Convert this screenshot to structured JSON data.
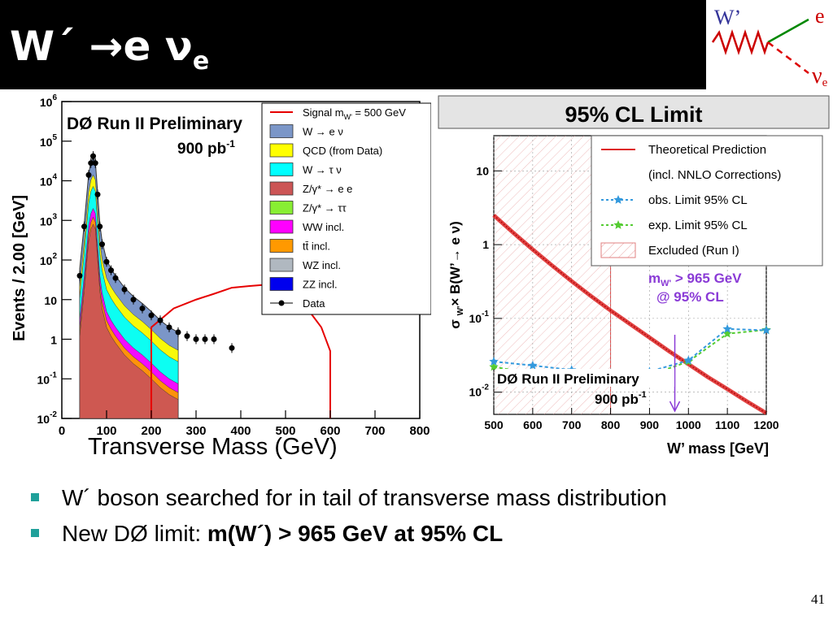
{
  "slide": {
    "title_main": "W´ →e ν",
    "title_sub": "e",
    "feynman": {
      "w_label": "W’",
      "e_label": "e",
      "nu_label": "ν",
      "nu_sub": "e"
    },
    "bullets": [
      {
        "text": "W´ boson searched for in tail of transverse mass distribution",
        "bold": ""
      },
      {
        "text": "New DØ limit: ",
        "bold": "m(W´) > 965 GeV at 95% CL"
      }
    ],
    "page_number": "41",
    "left_xlabel": "Transverse Mass (GeV)"
  },
  "chart_data": [
    {
      "type": "bar",
      "subtype": "stacked-histogram-log",
      "ylabel": "Events / 2.00 [GeV]",
      "xlabel": "Transverse Mass (GeV)",
      "annotation_title": "DØ Run II Preliminary",
      "annotation_lumi": "900 pb",
      "annotation_lumi_sup": "-1",
      "xlim": [
        0,
        800
      ],
      "ylim": [
        0.01,
        1000000
      ],
      "log_y": true,
      "x_ticks": [
        "0",
        "100",
        "200",
        "300",
        "400",
        "500",
        "600",
        "700",
        "800"
      ],
      "y_ticks": [
        "10-2",
        "10-1",
        "1",
        "10",
        "10²",
        "10³",
        "10⁴",
        "10⁵",
        "10⁶"
      ],
      "y_tick_labels": [
        {
          "base": "10",
          "exp": "-2"
        },
        {
          "base": "10",
          "exp": "-1"
        },
        {
          "base": "1",
          "exp": ""
        },
        {
          "base": "10",
          "exp": ""
        },
        {
          "base": "10",
          "exp": "2"
        },
        {
          "base": "10",
          "exp": "3"
        },
        {
          "base": "10",
          "exp": "4"
        },
        {
          "base": "10",
          "exp": "5"
        },
        {
          "base": "10",
          "exp": "6"
        }
      ],
      "legend_position": "top-right",
      "legend": [
        {
          "name": "Signal m",
          "sub": "W'",
          "suffix": " = 500 GeV",
          "color": "#e60000",
          "style": "line"
        },
        {
          "name": "W → e ν",
          "color": "#7b96c8",
          "style": "box"
        },
        {
          "name": "QCD (from Data)",
          "color": "#ffff00",
          "style": "box"
        },
        {
          "name": "W → τ ν",
          "color": "#00ffff",
          "style": "box"
        },
        {
          "name": "Z/γ* → e e",
          "color": "#cc5555",
          "style": "box"
        },
        {
          "name": "Z/γ* → ττ",
          "color": "#88ee33",
          "style": "box"
        },
        {
          "name": "WW incl.",
          "color": "#ff00ff",
          "style": "box"
        },
        {
          "name": "tt̄ incl.",
          "color": "#ff9900",
          "style": "box"
        },
        {
          "name": "WZ incl.",
          "color": "#b0b8c0",
          "style": "box"
        },
        {
          "name": "ZZ incl.",
          "color": "#0000ee",
          "style": "box"
        },
        {
          "name": "Data",
          "color": "#000000",
          "style": "marker"
        }
      ],
      "series": [
        {
          "name": "W → e ν",
          "color": "#7b96c8",
          "x": [
            40,
            50,
            60,
            65,
            70,
            75,
            80,
            85,
            90,
            100,
            110,
            120,
            140,
            160,
            180,
            200,
            220,
            240,
            260
          ],
          "values": [
            60,
            800,
            15000,
            30000,
            40000,
            30000,
            5000,
            800,
            300,
            100,
            60,
            40,
            20,
            12,
            8,
            5,
            3,
            2,
            1.5
          ]
        },
        {
          "name": "Data",
          "color": "#000000",
          "x": [
            40,
            50,
            60,
            65,
            70,
            75,
            80,
            85,
            90,
            100,
            110,
            120,
            140,
            160,
            180,
            200,
            220,
            240,
            260,
            280,
            300,
            320,
            340,
            380
          ],
          "values": [
            40,
            700,
            14000,
            28000,
            42000,
            28000,
            4500,
            700,
            250,
            90,
            55,
            35,
            18,
            10,
            6,
            4,
            3,
            2,
            1.5,
            1.2,
            1,
            1,
            1,
            0.6
          ]
        },
        {
          "name": "Signal m W' = 500 GeV",
          "color": "#e60000",
          "x": [
            200,
            250,
            300,
            340,
            380,
            420,
            460,
            480,
            500,
            520,
            540,
            560,
            580,
            600
          ],
          "values": [
            2,
            6,
            10,
            14,
            20,
            22,
            24,
            22,
            20,
            14,
            8,
            4,
            2,
            0.5
          ]
        }
      ]
    },
    {
      "type": "line",
      "subtype": "log-y-limit",
      "title": "95% CL Limit",
      "xlabel": "W’ mass [GeV]",
      "ylabel_main": "σ",
      "ylabel_sub": "W'",
      "ylabel_rest": "× B(W’→ e ν)",
      "xlim": [
        500,
        1200
      ],
      "ylim": [
        0.005,
        30
      ],
      "log_y": true,
      "x_ticks": [
        "500",
        "600",
        "700",
        "800",
        "900",
        "1000",
        "1100",
        "1200"
      ],
      "y_tick_labels": [
        {
          "base": "10",
          "exp": "-2"
        },
        {
          "base": "10",
          "exp": "-1"
        },
        {
          "base": "1",
          "exp": ""
        },
        {
          "base": "10",
          "exp": ""
        }
      ],
      "legend_position": "top-right",
      "legend": [
        {
          "name": "Theoretical Prediction",
          "color": "#dd2222",
          "style": "solid"
        },
        {
          "name": "(incl. NNLO Corrections)",
          "color": "",
          "style": "none"
        },
        {
          "name": "obs. Limit 95% CL",
          "color": "#3399dd",
          "style": "dashed-star"
        },
        {
          "name": "exp. Limit 95% CL",
          "color": "#55cc33",
          "style": "dashed-star"
        },
        {
          "name": "Excluded (Run I)",
          "color": "#e08080",
          "style": "hatched"
        }
      ],
      "annotation_limit": "m",
      "annotation_limit_sub": "W'",
      "annotation_limit_rest": " > 965 GeV",
      "annotation_limit_cl": "@ 95% CL",
      "annotation_title": "DØ Run II Preliminary",
      "annotation_lumi": "900 pb",
      "annotation_lumi_sup": "-1",
      "excluded_run1_upper": 800,
      "limit_mass": 965,
      "series": [
        {
          "name": "Theoretical Prediction",
          "x": [
            500,
            550,
            600,
            650,
            700,
            750,
            800,
            850,
            900,
            950,
            1000,
            1050,
            1100,
            1150,
            1200
          ],
          "values": [
            2.5,
            1.45,
            0.86,
            0.52,
            0.32,
            0.2,
            0.128,
            0.084,
            0.055,
            0.036,
            0.024,
            0.016,
            0.011,
            0.0075,
            0.0052
          ]
        },
        {
          "name": "obs. Limit 95% CL",
          "x": [
            500,
            600,
            700,
            800,
            900,
            1000,
            1100,
            1200
          ],
          "values": [
            0.026,
            0.023,
            0.02,
            0.018,
            0.019,
            0.027,
            0.072,
            0.069
          ]
        },
        {
          "name": "exp. Limit 95% CL",
          "x": [
            500,
            600,
            700,
            800,
            900,
            1000,
            1100,
            1200
          ],
          "values": [
            0.022,
            0.018,
            0.015,
            0.015,
            0.017,
            0.026,
            0.062,
            0.07
          ]
        }
      ]
    }
  ]
}
